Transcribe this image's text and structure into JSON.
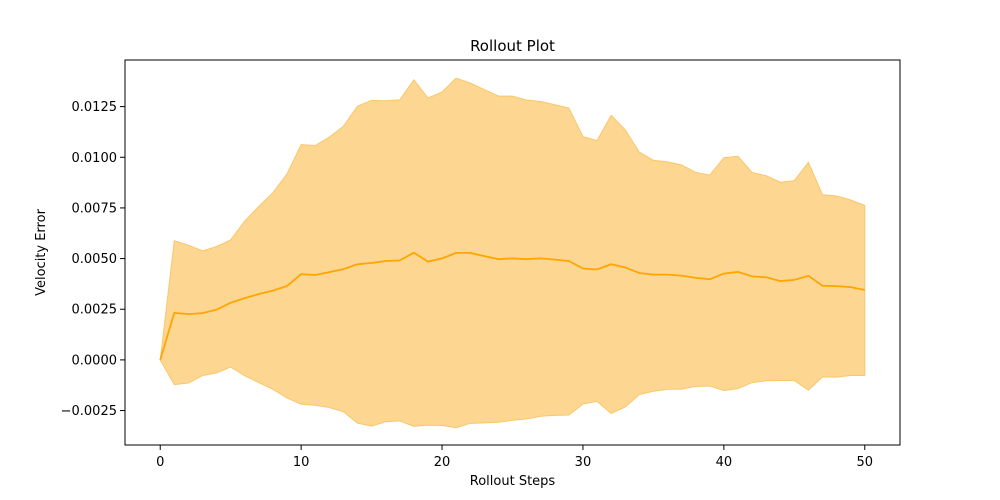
{
  "chart_data": {
    "type": "line",
    "title": "Rollout Plot",
    "xlabel": "Rollout Steps",
    "ylabel": "Velocity Error",
    "xlim": [
      -2.5,
      52.5
    ],
    "ylim": [
      -0.0042,
      0.0148
    ],
    "x_ticks": [
      0,
      10,
      20,
      30,
      40,
      50
    ],
    "x_tick_labels": [
      "0",
      "10",
      "20",
      "30",
      "40",
      "50"
    ],
    "y_ticks": [
      -0.0025,
      0.0,
      0.0025,
      0.005,
      0.0075,
      0.01,
      0.0125
    ],
    "y_tick_labels": [
      "−0.0025",
      "0.0000",
      "0.0025",
      "0.0050",
      "0.0075",
      "0.0100",
      "0.0125"
    ],
    "grid": false,
    "colors": {
      "line": "#FFA500",
      "band": "#FDD792",
      "band_edge": "#F9C66A"
    },
    "series": [
      {
        "x": [
          0,
          1,
          2,
          3,
          4,
          5,
          6,
          7,
          8,
          9,
          10,
          11,
          12,
          13,
          14,
          15,
          16,
          17,
          18,
          19,
          20,
          21,
          22,
          23,
          24,
          25,
          26,
          27,
          28,
          29,
          30,
          31,
          32,
          33,
          34,
          35,
          36,
          37,
          38,
          39,
          40,
          41,
          42,
          43,
          44,
          45,
          46,
          47,
          48,
          49,
          50
        ],
        "mean": [
          0.0,
          0.00232,
          0.00226,
          0.00231,
          0.00248,
          0.00282,
          0.00305,
          0.00325,
          0.00342,
          0.00365,
          0.00423,
          0.00419,
          0.00433,
          0.00448,
          0.00472,
          0.00478,
          0.00488,
          0.00491,
          0.00529,
          0.00485,
          0.00501,
          0.00528,
          0.00528,
          0.00512,
          0.00497,
          0.00501,
          0.00497,
          0.00501,
          0.00495,
          0.00488,
          0.00451,
          0.00446,
          0.00472,
          0.00456,
          0.00429,
          0.00421,
          0.00421,
          0.00416,
          0.00405,
          0.00398,
          0.00426,
          0.00434,
          0.00412,
          0.00408,
          0.00389,
          0.00395,
          0.00415,
          0.00366,
          0.00364,
          0.00359,
          0.00345
        ],
        "upper": [
          0.0,
          0.00588,
          0.00566,
          0.00538,
          0.00559,
          0.00592,
          0.00685,
          0.00758,
          0.00825,
          0.00918,
          0.01062,
          0.01058,
          0.01099,
          0.01153,
          0.01252,
          0.01281,
          0.01279,
          0.01283,
          0.01382,
          0.01292,
          0.01322,
          0.01391,
          0.01366,
          0.01334,
          0.01302,
          0.01302,
          0.01282,
          0.01275,
          0.01259,
          0.01243,
          0.01102,
          0.01082,
          0.01207,
          0.01135,
          0.01025,
          0.00985,
          0.00977,
          0.00962,
          0.00925,
          0.00912,
          0.00998,
          0.01005,
          0.00925,
          0.00909,
          0.00877,
          0.00885,
          0.00975,
          0.00815,
          0.00809,
          0.00789,
          0.00762
        ],
        "lower": [
          0.0,
          -0.00122,
          -0.00114,
          -0.00077,
          -0.00064,
          -0.00035,
          -0.00078,
          -0.00112,
          -0.00145,
          -0.00188,
          -0.00219,
          -0.00224,
          -0.00235,
          -0.00256,
          -0.00312,
          -0.00327,
          -0.00305,
          -0.00301,
          -0.00328,
          -0.00322,
          -0.00324,
          -0.00335,
          -0.00313,
          -0.00311,
          -0.00308,
          -0.00298,
          -0.00291,
          -0.00278,
          -0.00274,
          -0.00272,
          -0.00218,
          -0.00205,
          -0.00264,
          -0.00232,
          -0.00171,
          -0.00155,
          -0.00145,
          -0.00144,
          -0.00131,
          -0.00129,
          -0.00151,
          -0.00142,
          -0.00112,
          -0.00103,
          -0.00102,
          -0.00102,
          -0.00149,
          -0.00084,
          -0.00085,
          -0.00077,
          -0.00077
        ]
      }
    ]
  }
}
